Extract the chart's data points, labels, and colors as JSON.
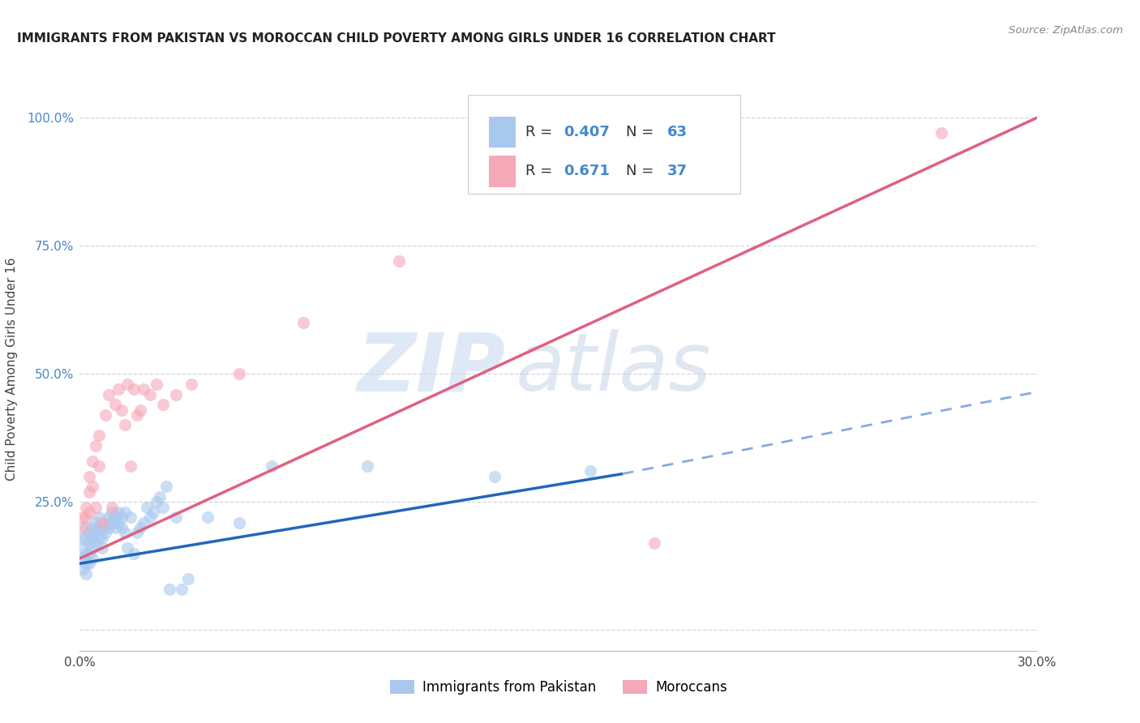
{
  "title": "IMMIGRANTS FROM PAKISTAN VS MOROCCAN CHILD POVERTY AMONG GIRLS UNDER 16 CORRELATION CHART",
  "source": "Source: ZipAtlas.com",
  "ylabel": "Child Poverty Among Girls Under 16",
  "xlim": [
    0.0,
    0.3
  ],
  "ylim": [
    -0.04,
    1.06
  ],
  "xticks": [
    0.0,
    0.05,
    0.1,
    0.15,
    0.2,
    0.25,
    0.3
  ],
  "xtick_labels": [
    "0.0%",
    "",
    "",
    "",
    "",
    "",
    "30.0%"
  ],
  "yticks": [
    0.0,
    0.25,
    0.5,
    0.75,
    1.0
  ],
  "ytick_labels": [
    "",
    "25.0%",
    "50.0%",
    "75.0%",
    "100.0%"
  ],
  "r_pakistan": 0.407,
  "n_pakistan": 63,
  "r_moroccan": 0.671,
  "n_moroccan": 37,
  "pakistan_color": "#a8c8ee",
  "moroccan_color": "#f4a8b8",
  "trend_pakistan_solid_color": "#2266bb",
  "trend_pakistan_dash_color": "#88aadd",
  "trend_moroccan_color": "#e06080",
  "background_color": "#ffffff",
  "grid_color": "#cccccc",
  "watermark_zip": "ZIP",
  "watermark_atlas": "atlas",
  "legend_labels": [
    "Immigrants from Pakistan",
    "Moroccans"
  ],
  "pakistan_x": [
    0.001,
    0.001,
    0.001,
    0.001,
    0.002,
    0.002,
    0.002,
    0.002,
    0.002,
    0.003,
    0.003,
    0.003,
    0.003,
    0.004,
    0.004,
    0.004,
    0.004,
    0.005,
    0.005,
    0.005,
    0.006,
    0.006,
    0.006,
    0.007,
    0.007,
    0.007,
    0.008,
    0.008,
    0.009,
    0.009,
    0.01,
    0.01,
    0.011,
    0.011,
    0.012,
    0.012,
    0.013,
    0.013,
    0.014,
    0.014,
    0.015,
    0.016,
    0.017,
    0.018,
    0.019,
    0.02,
    0.021,
    0.022,
    0.023,
    0.024,
    0.025,
    0.026,
    0.027,
    0.028,
    0.03,
    0.032,
    0.034,
    0.04,
    0.05,
    0.06,
    0.09,
    0.13,
    0.16
  ],
  "pakistan_y": [
    0.18,
    0.16,
    0.14,
    0.12,
    0.2,
    0.18,
    0.15,
    0.13,
    0.11,
    0.19,
    0.17,
    0.15,
    0.13,
    0.2,
    0.18,
    0.16,
    0.14,
    0.21,
    0.19,
    0.17,
    0.22,
    0.2,
    0.18,
    0.2,
    0.18,
    0.16,
    0.21,
    0.19,
    0.22,
    0.2,
    0.23,
    0.21,
    0.22,
    0.2,
    0.23,
    0.21,
    0.22,
    0.2,
    0.23,
    0.19,
    0.16,
    0.22,
    0.15,
    0.19,
    0.2,
    0.21,
    0.24,
    0.22,
    0.23,
    0.25,
    0.26,
    0.24,
    0.28,
    0.08,
    0.22,
    0.08,
    0.1,
    0.22,
    0.21,
    0.32,
    0.32,
    0.3,
    0.31
  ],
  "moroccan_x": [
    0.001,
    0.001,
    0.002,
    0.002,
    0.003,
    0.003,
    0.003,
    0.004,
    0.004,
    0.005,
    0.005,
    0.006,
    0.006,
    0.007,
    0.008,
    0.009,
    0.01,
    0.011,
    0.012,
    0.013,
    0.014,
    0.015,
    0.016,
    0.017,
    0.018,
    0.019,
    0.02,
    0.022,
    0.024,
    0.026,
    0.03,
    0.035,
    0.05,
    0.07,
    0.1,
    0.18,
    0.27
  ],
  "moroccan_y": [
    0.22,
    0.2,
    0.24,
    0.22,
    0.3,
    0.27,
    0.23,
    0.33,
    0.28,
    0.36,
    0.24,
    0.38,
    0.32,
    0.21,
    0.42,
    0.46,
    0.24,
    0.44,
    0.47,
    0.43,
    0.4,
    0.48,
    0.32,
    0.47,
    0.42,
    0.43,
    0.47,
    0.46,
    0.48,
    0.44,
    0.46,
    0.48,
    0.5,
    0.6,
    0.72,
    0.17,
    0.97
  ],
  "trend_pak_x0": 0.0,
  "trend_pak_y0": 0.13,
  "trend_pak_x1": 0.17,
  "trend_pak_y1": 0.305,
  "trend_pak_dash_x0": 0.17,
  "trend_pak_dash_y0": 0.305,
  "trend_pak_dash_x1": 0.3,
  "trend_pak_dash_y1": 0.465,
  "trend_mor_x0": 0.0,
  "trend_mor_y0": 0.14,
  "trend_mor_x1": 0.3,
  "trend_mor_y1": 1.0
}
